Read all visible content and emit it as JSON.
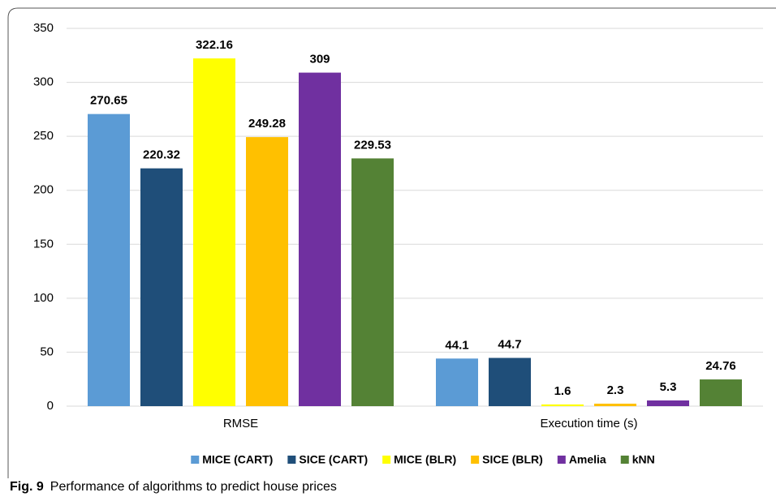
{
  "chart_data": {
    "type": "bar",
    "categories": [
      "RMSE",
      "Execution time (s)"
    ],
    "series": [
      {
        "name": "MICE (CART)",
        "color": "#5b9bd5",
        "values": [
          270.65,
          44.1
        ]
      },
      {
        "name": "SICE (CART)",
        "color": "#1f4e79",
        "values": [
          220.32,
          44.7
        ]
      },
      {
        "name": "MICE (BLR)",
        "color": "#ffff00",
        "values": [
          322.16,
          1.6
        ]
      },
      {
        "name": "SICE (BLR)",
        "color": "#ffc000",
        "values": [
          249.28,
          2.3
        ]
      },
      {
        "name": "Amelia",
        "color": "#7030a0",
        "values": [
          309,
          5.3
        ]
      },
      {
        "name": "kNN",
        "color": "#548235",
        "values": [
          229.53,
          24.76
        ]
      }
    ],
    "ylim": [
      0,
      350
    ],
    "yticks": [
      0,
      50,
      100,
      150,
      200,
      250,
      300,
      350
    ],
    "grid": true,
    "legend": "bottom",
    "caption_label": "Fig. 9",
    "caption": "Performance of algorithms to predict house prices"
  }
}
